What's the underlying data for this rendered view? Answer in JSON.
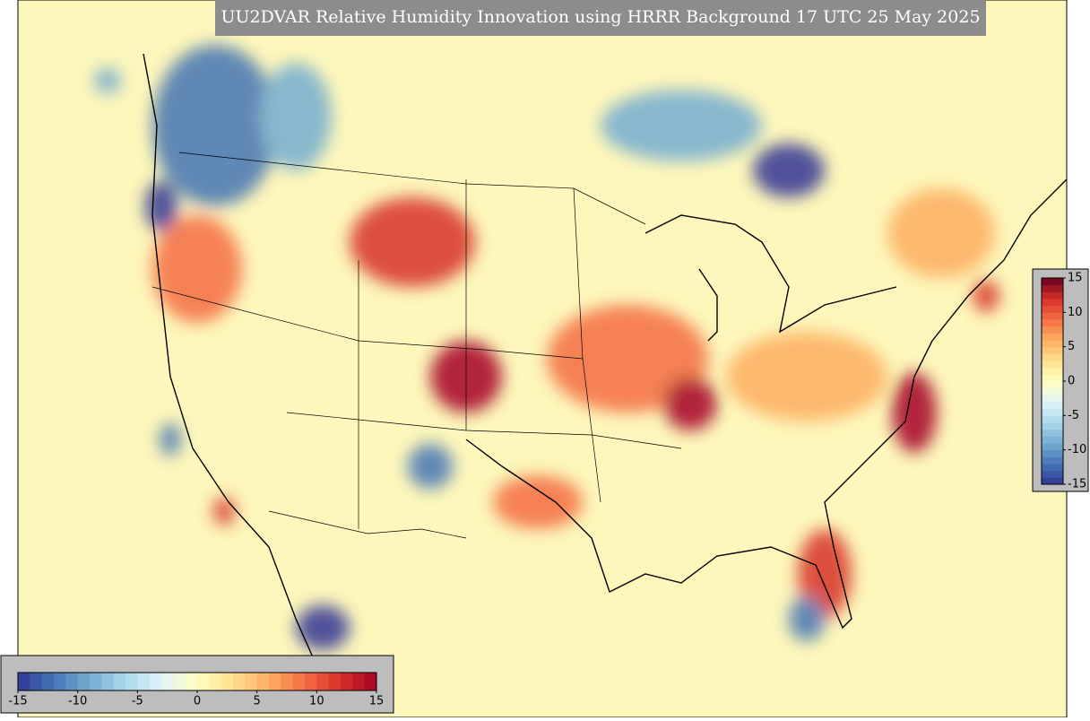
{
  "title": "UU2DVAR Relative Humidity Innovation using HRRR Background 17 UTC 25 May 2025",
  "colorbar_horizontal": {
    "range": [
      -15,
      15
    ],
    "ticks": [
      -15,
      -10,
      -5,
      0,
      5,
      10,
      15
    ],
    "colors": [
      "#313695",
      "#4575b4",
      "#74add1",
      "#abd9e9",
      "#e0f3f8",
      "#ffffbf",
      "#fee090",
      "#fdae61",
      "#f46d43",
      "#d73027",
      "#a50026"
    ]
  },
  "colorbar_vertical": {
    "range": [
      -15,
      15
    ],
    "ticks": [
      15,
      10,
      5,
      0,
      -5,
      -10,
      -15
    ],
    "colors": [
      "#313695",
      "#4575b4",
      "#74add1",
      "#abd9e9",
      "#e0f3f8",
      "#ffffbf",
      "#fee090",
      "#fdae61",
      "#f46d43",
      "#d73027",
      "#67001f"
    ]
  }
}
